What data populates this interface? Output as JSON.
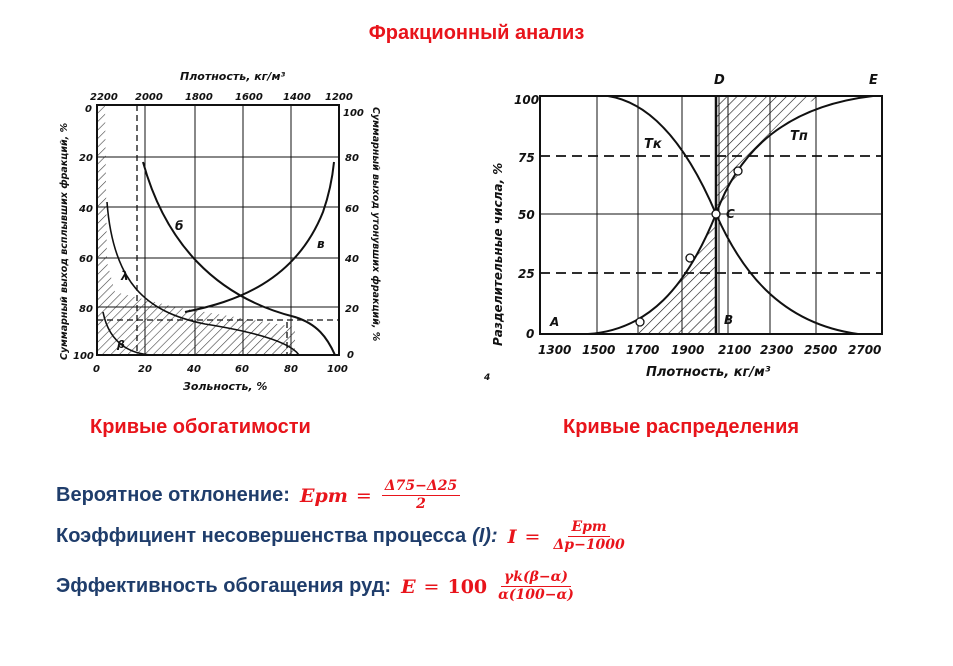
{
  "title": "Фракционный анализ",
  "left_figure": {
    "top_axis_title": "Плотность, кг/м³",
    "top_ticks": [
      "2200",
      "2000",
      "1800",
      "1600",
      "1400",
      "1200"
    ],
    "bottom_axis_title": "Зольность, %",
    "bottom_ticks": [
      "0",
      "20",
      "40",
      "60",
      "80",
      "100"
    ],
    "left_axis_title": "Суммарный выход всплывших фракций, %",
    "left_ticks": [
      "0",
      "20",
      "40",
      "60",
      "80",
      "100"
    ],
    "right_axis_title": "Суммарный выход утонувших фракций, %",
    "right_ticks": [
      "100",
      "80",
      "60",
      "40",
      "20",
      "0"
    ],
    "curve_labels": [
      "б",
      "в",
      "λ",
      "β"
    ]
  },
  "right_figure": {
    "y_axis_title": "Разделительные числа, %",
    "y_ticks": [
      "100",
      "75",
      "50",
      "25",
      "0"
    ],
    "x_axis_title": "Плотность, кг/м³",
    "x_ticks": [
      "1300",
      "1500",
      "1700",
      "1900",
      "2100",
      "2300",
      "2500",
      "2700"
    ],
    "point_labels": [
      "D",
      "E",
      "C",
      "A",
      "B"
    ],
    "curve_labels": [
      "Тк",
      "Тп"
    ],
    "corner_mark": "4"
  },
  "captions": {
    "left": "Кривые обогатимости",
    "right": "Кривые распределения"
  },
  "formulas": [
    {
      "label": "Вероятное отклонение:",
      "lhs": "Epm",
      "eq": "=",
      "numerator": "Δ75−Δ25",
      "denominator": "2"
    },
    {
      "label": "Коэффициент несовершенства процесса",
      "label_italic": "(I):",
      "lhs": "I",
      "eq": "=",
      "numerator": "Epm",
      "denominator": "Δp−1000"
    },
    {
      "label": "Эффективность обогащения руд:",
      "lhs": "E",
      "eq": "=",
      "coef": "100",
      "numerator": "γk(β−α)",
      "denominator": "α(100−α)"
    }
  ]
}
